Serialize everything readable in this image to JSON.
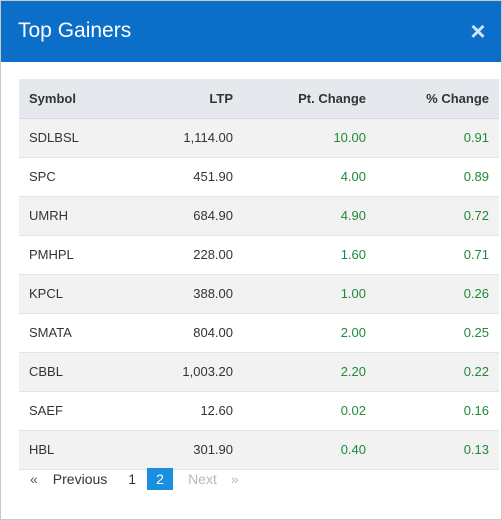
{
  "modal": {
    "title": "Top Gainers",
    "close_glyph": "×"
  },
  "table": {
    "headers": {
      "symbol": "Symbol",
      "ltp": "LTP",
      "pt_change": "Pt. Change",
      "pct_change": "% Change"
    },
    "rows": [
      {
        "symbol": "SDLBSL",
        "ltp": "1,114.00",
        "pt_change": "10.00",
        "pct_change": "0.91"
      },
      {
        "symbol": "SPC",
        "ltp": "451.90",
        "pt_change": "4.00",
        "pct_change": "0.89"
      },
      {
        "symbol": "UMRH",
        "ltp": "684.90",
        "pt_change": "4.90",
        "pct_change": "0.72"
      },
      {
        "symbol": "PMHPL",
        "ltp": "228.00",
        "pt_change": "1.60",
        "pct_change": "0.71"
      },
      {
        "symbol": "KPCL",
        "ltp": "388.00",
        "pt_change": "1.00",
        "pct_change": "0.26"
      },
      {
        "symbol": "SMATA",
        "ltp": "804.00",
        "pt_change": "2.00",
        "pct_change": "0.25"
      },
      {
        "symbol": "CBBL",
        "ltp": "1,003.20",
        "pt_change": "2.20",
        "pct_change": "0.22"
      },
      {
        "symbol": "SAEF",
        "ltp": "12.60",
        "pt_change": "0.02",
        "pct_change": "0.16"
      },
      {
        "symbol": "HBL",
        "ltp": "301.90",
        "pt_change": "0.40",
        "pct_change": "0.13"
      }
    ]
  },
  "pagination": {
    "prev_arrow": "«",
    "prev_label": "Previous",
    "pages": [
      "1",
      "2"
    ],
    "current_page": "2",
    "next_label": "Next",
    "next_arrow": "»"
  },
  "colors": {
    "header_bg": "#0b6ec8",
    "positive": "#1e8a3a",
    "active_page": "#1a8fe0"
  }
}
